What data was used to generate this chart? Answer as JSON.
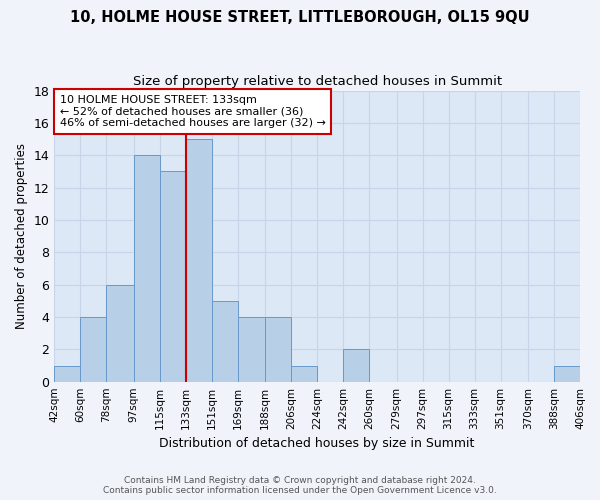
{
  "title": "10, HOLME HOUSE STREET, LITTLEBOROUGH, OL15 9QU",
  "subtitle": "Size of property relative to detached houses in Summit",
  "xlabel": "Distribution of detached houses by size in Summit",
  "ylabel": "Number of detached properties",
  "bin_edges": [
    42,
    60,
    78,
    97,
    115,
    133,
    151,
    169,
    188,
    206,
    224,
    242,
    260,
    279,
    297,
    315,
    333,
    351,
    370,
    388,
    406
  ],
  "bar_heights": [
    1,
    4,
    6,
    14,
    13,
    15,
    5,
    4,
    4,
    1,
    0,
    2,
    0,
    0,
    0,
    0,
    0,
    0,
    0,
    1
  ],
  "bar_color": "#b8cfe8",
  "bar_edge_color": "#6699cc",
  "highlight_value": 133,
  "highlight_color": "#cc0000",
  "tick_labels": [
    "42sqm",
    "60sqm",
    "78sqm",
    "97sqm",
    "115sqm",
    "133sqm",
    "151sqm",
    "169sqm",
    "188sqm",
    "206sqm",
    "224sqm",
    "242sqm",
    "260sqm",
    "279sqm",
    "297sqm",
    "315sqm",
    "333sqm",
    "351sqm",
    "370sqm",
    "388sqm",
    "406sqm"
  ],
  "ylim": [
    0,
    18
  ],
  "yticks": [
    0,
    2,
    4,
    6,
    8,
    10,
    12,
    14,
    16,
    18
  ],
  "annotation_text": "10 HOLME HOUSE STREET: 133sqm\n← 52% of detached houses are smaller (36)\n46% of semi-detached houses are larger (32) →",
  "annotation_box_facecolor": "#ffffff",
  "annotation_border_color": "#cc0000",
  "footer_line1": "Contains HM Land Registry data © Crown copyright and database right 2024.",
  "footer_line2": "Contains public sector information licensed under the Open Government Licence v3.0.",
  "grid_color": "#c8d4e8",
  "plot_bg_color": "#dce8f5",
  "fig_bg_color": "#f0f4fa"
}
